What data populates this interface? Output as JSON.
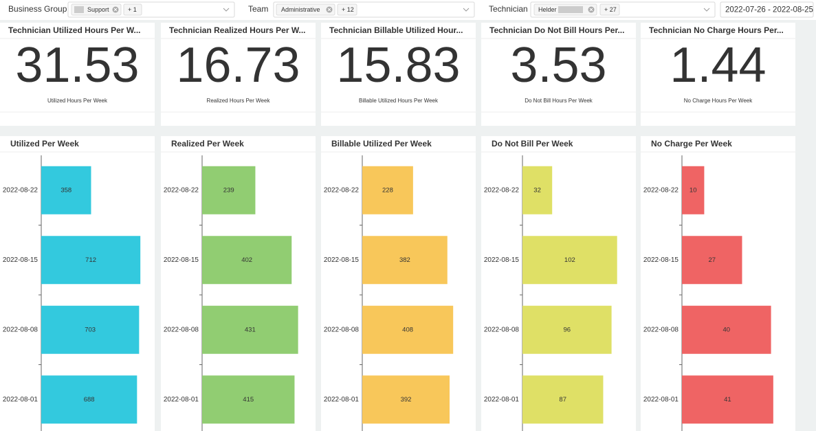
{
  "filters": [
    {
      "label": "Business Group",
      "chips": [
        "Support",
        "+ 1"
      ]
    },
    {
      "label": "Team",
      "chips": [
        "Administrative",
        "+ 12"
      ]
    },
    {
      "label": "Technician",
      "chips": [
        "Helder",
        "+ 27"
      ]
    }
  ],
  "date_range": "2022-07-26 - 2022-08-25",
  "kpis": [
    {
      "title": "Technician Utilized Hours Per W...",
      "value": 31.53,
      "caption": "Utilized Hours Per Week"
    },
    {
      "title": "Technician Realized Hours Per W...",
      "value": 16.73,
      "caption": "Realized Hours Per Week"
    },
    {
      "title": "Technician Billable Utilized Hour...",
      "value": 15.83,
      "caption": "Billable Utilized Hours Per Week"
    },
    {
      "title": "Technician Do Not Bill Hours Per...",
      "value": 3.53,
      "caption": "Do Not Bill Hours Per Week"
    },
    {
      "title": "Technician No Charge Hours Per...",
      "value": 1.44,
      "caption": "No Charge Hours Per Week"
    }
  ],
  "chart_data": [
    {
      "type": "bar",
      "orientation": "horizontal",
      "title": "Utilized Per Week",
      "categories": [
        "2022-08-22",
        "2022-08-15",
        "2022-08-08",
        "2022-08-01"
      ],
      "values": [
        358,
        712,
        703,
        688
      ],
      "color": "#33c9de",
      "xlim": [
        0,
        800
      ]
    },
    {
      "type": "bar",
      "orientation": "horizontal",
      "title": "Realized Per Week",
      "categories": [
        "2022-08-22",
        "2022-08-15",
        "2022-08-08",
        "2022-08-01"
      ],
      "values": [
        239,
        402,
        431,
        415
      ],
      "color": "#91cd72",
      "xlim": [
        0,
        500
      ]
    },
    {
      "type": "bar",
      "orientation": "horizontal",
      "title": "Billable Utilized Per Week",
      "categories": [
        "2022-08-22",
        "2022-08-15",
        "2022-08-08",
        "2022-08-01"
      ],
      "values": [
        228,
        382,
        408,
        392
      ],
      "color": "#f8c75a",
      "xlim": [
        0,
        500
      ]
    },
    {
      "type": "bar",
      "orientation": "horizontal",
      "title": "Do Not Bill Per Week",
      "categories": [
        "2022-08-22",
        "2022-08-15",
        "2022-08-08",
        "2022-08-01"
      ],
      "values": [
        32,
        102,
        96,
        87
      ],
      "color": "#dfe066",
      "xlim": [
        0,
        120
      ]
    },
    {
      "type": "bar",
      "orientation": "horizontal",
      "title": "No Charge Per Week",
      "categories": [
        "2022-08-22",
        "2022-08-15",
        "2022-08-08",
        "2022-08-01"
      ],
      "values": [
        10,
        27,
        40,
        41
      ],
      "color": "#ef6464",
      "xlim": [
        0,
        50
      ]
    }
  ]
}
